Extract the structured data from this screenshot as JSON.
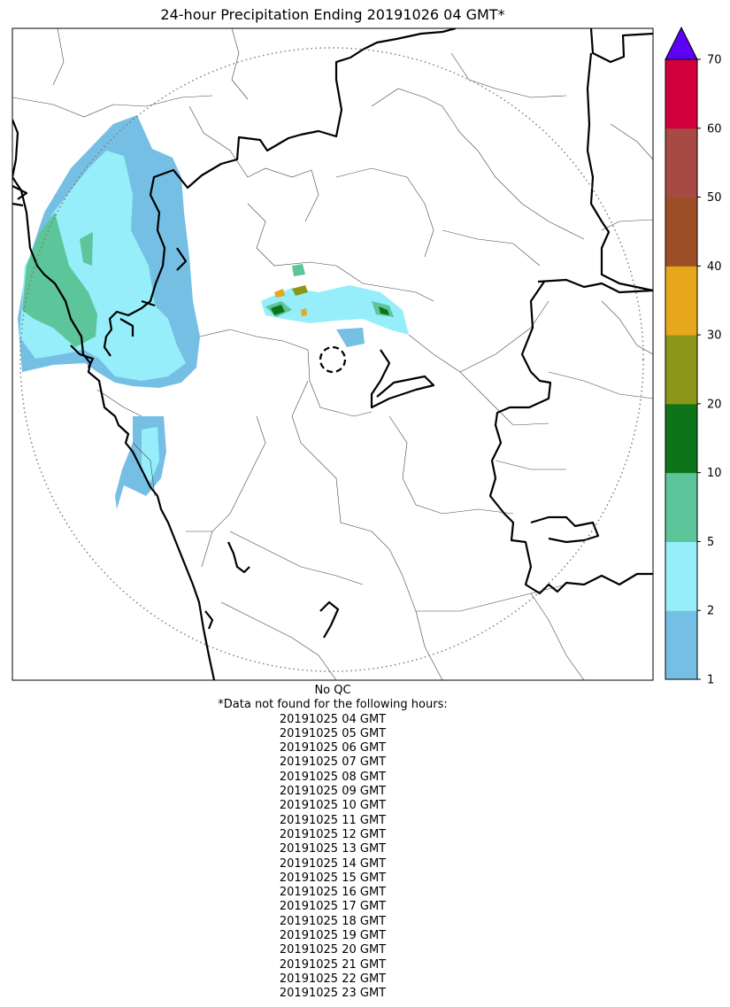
{
  "title": "24-hour Precipitation Ending 20191026 04 GMT*",
  "qc_note": "No QC",
  "missing_note": "*Data not found for the following hours:",
  "missing_hours": [
    "20191025 04 GMT",
    "20191025 05 GMT",
    "20191025 06 GMT",
    "20191025 07 GMT",
    "20191025 08 GMT",
    "20191025 09 GMT",
    "20191025 10 GMT",
    "20191025 11 GMT",
    "20191025 12 GMT",
    "20191025 13 GMT",
    "20191025 14 GMT",
    "20191025 15 GMT",
    "20191025 16 GMT",
    "20191025 17 GMT",
    "20191025 18 GMT",
    "20191025 19 GMT",
    "20191025 20 GMT",
    "20191025 21 GMT",
    "20191025 22 GMT",
    "20191025 23 GMT"
  ],
  "colorbar": {
    "levels": [
      1,
      2,
      5,
      10,
      20,
      30,
      40,
      50,
      60,
      70
    ],
    "colors": [
      "#76bfe4",
      "#95eef9",
      "#5cc59a",
      "#0e7419",
      "#8c9619",
      "#e6a81a",
      "#9c4f26",
      "#a64a43",
      "#d2013e"
    ],
    "extend_color": "#5b02f5"
  },
  "map_style": {
    "radar_circle": "dotted",
    "center_marker": "dashed-circle"
  }
}
